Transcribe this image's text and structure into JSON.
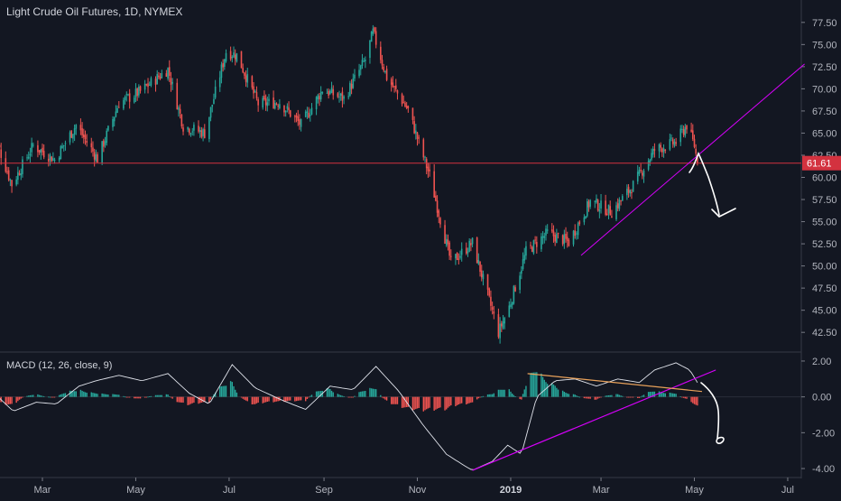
{
  "header": {
    "title": "Light Crude Oil Futures, 1D, NYMEX"
  },
  "indicator": {
    "title": "MACD (12, 26, close, 9)"
  },
  "colors": {
    "background": "#131722",
    "up": "#26a69a",
    "down": "#ef5350",
    "macd_line": "#e0e3eb",
    "trend": "#d500f9",
    "signal_line": "#e8a15a",
    "price_line": "#d3323f",
    "grid": "#2a2e39"
  },
  "chart_data": [
    {
      "type": "candlestick",
      "title": "Light Crude Oil Futures, 1D, NYMEX",
      "x_ticks": [
        "Mar",
        "May",
        "Jul",
        "Sep",
        "Nov",
        "2019",
        "Mar",
        "May",
        "Jul"
      ],
      "y_ticks": [
        "77.50",
        "75.00",
        "72.50",
        "70.00",
        "67.50",
        "65.00",
        "62.50",
        "60.00",
        "57.50",
        "55.00",
        "52.50",
        "50.00",
        "47.50",
        "45.00",
        "42.50"
      ],
      "ylim": [
        41.5,
        78.5
      ],
      "last_price": "61.61",
      "close_path": [
        {
          "date": "2018-01-26",
          "close": 66.1
        },
        {
          "date": "2018-02-09",
          "close": 59.2
        },
        {
          "date": "2018-02-23",
          "close": 63.6
        },
        {
          "date": "2018-03-09",
          "close": 62.0
        },
        {
          "date": "2018-03-23",
          "close": 65.9
        },
        {
          "date": "2018-04-06",
          "close": 62.1
        },
        {
          "date": "2018-04-20",
          "close": 68.4
        },
        {
          "date": "2018-05-04",
          "close": 69.7
        },
        {
          "date": "2018-05-22",
          "close": 72.2
        },
        {
          "date": "2018-06-01",
          "close": 65.8
        },
        {
          "date": "2018-06-15",
          "close": 65.0
        },
        {
          "date": "2018-06-29",
          "close": 74.2
        },
        {
          "date": "2018-07-06",
          "close": 73.8
        },
        {
          "date": "2018-07-20",
          "close": 68.3
        },
        {
          "date": "2018-08-03",
          "close": 68.5
        },
        {
          "date": "2018-08-17",
          "close": 65.9
        },
        {
          "date": "2018-08-31",
          "close": 69.9
        },
        {
          "date": "2018-09-14",
          "close": 68.9
        },
        {
          "date": "2018-09-28",
          "close": 73.3
        },
        {
          "date": "2018-10-03",
          "close": 76.4
        },
        {
          "date": "2018-10-12",
          "close": 71.3
        },
        {
          "date": "2018-10-26",
          "close": 67.6
        },
        {
          "date": "2018-11-09",
          "close": 60.2
        },
        {
          "date": "2018-11-23",
          "close": 50.4
        },
        {
          "date": "2018-12-07",
          "close": 52.6
        },
        {
          "date": "2018-12-24",
          "close": 42.5
        },
        {
          "date": "2018-12-31",
          "close": 45.4
        },
        {
          "date": "2019-01-11",
          "close": 51.6
        },
        {
          "date": "2019-01-25",
          "close": 53.7
        },
        {
          "date": "2019-02-08",
          "close": 52.7
        },
        {
          "date": "2019-02-22",
          "close": 57.3
        },
        {
          "date": "2019-03-08",
          "close": 56.1
        },
        {
          "date": "2019-03-22",
          "close": 59.1
        },
        {
          "date": "2019-04-05",
          "close": 63.1
        },
        {
          "date": "2019-04-19",
          "close": 64.0
        },
        {
          "date": "2019-04-26",
          "close": 65.9
        },
        {
          "date": "2019-05-01",
          "close": 63.6
        },
        {
          "date": "2019-05-03",
          "close": 61.6
        }
      ]
    },
    {
      "type": "line",
      "title": "MACD (12, 26, close, 9)",
      "y_ticks": [
        "2.00",
        "0.00",
        "-2.00",
        "-4.00"
      ],
      "ylim": [
        -4.3,
        2.3
      ],
      "macd": [
        {
          "date": "2018-01-26",
          "value": 0.4
        },
        {
          "date": "2018-02-10",
          "value": -0.8
        },
        {
          "date": "2018-02-25",
          "value": -0.3
        },
        {
          "date": "2018-03-10",
          "value": -0.4
        },
        {
          "date": "2018-03-25",
          "value": 0.6
        },
        {
          "date": "2018-04-05",
          "value": 0.9
        },
        {
          "date": "2018-04-20",
          "value": 1.2
        },
        {
          "date": "2018-05-05",
          "value": 0.9
        },
        {
          "date": "2018-05-22",
          "value": 1.3
        },
        {
          "date": "2018-06-05",
          "value": 0.2
        },
        {
          "date": "2018-06-18",
          "value": -0.4
        },
        {
          "date": "2018-07-03",
          "value": 1.8
        },
        {
          "date": "2018-07-18",
          "value": 0.5
        },
        {
          "date": "2018-08-05",
          "value": -0.2
        },
        {
          "date": "2018-08-20",
          "value": -0.7
        },
        {
          "date": "2018-09-05",
          "value": 0.6
        },
        {
          "date": "2018-09-20",
          "value": 0.4
        },
        {
          "date": "2018-10-05",
          "value": 1.7
        },
        {
          "date": "2018-10-20",
          "value": 0.3
        },
        {
          "date": "2018-11-05",
          "value": -1.6
        },
        {
          "date": "2018-11-20",
          "value": -3.2
        },
        {
          "date": "2018-12-01",
          "value": -3.8
        },
        {
          "date": "2018-12-07",
          "value": -4.1
        },
        {
          "date": "2018-12-20",
          "value": -3.6
        },
        {
          "date": "2018-12-30",
          "value": -2.7
        },
        {
          "date": "2019-01-08",
          "value": -3.2
        },
        {
          "date": "2019-01-18",
          "value": 0.0
        },
        {
          "date": "2019-01-30",
          "value": 0.9
        },
        {
          "date": "2019-02-12",
          "value": 1.0
        },
        {
          "date": "2019-02-26",
          "value": 0.6
        },
        {
          "date": "2019-03-12",
          "value": 1.0
        },
        {
          "date": "2019-03-26",
          "value": 0.8
        },
        {
          "date": "2019-04-05",
          "value": 1.5
        },
        {
          "date": "2019-04-19",
          "value": 1.9
        },
        {
          "date": "2019-04-28",
          "value": 1.5
        },
        {
          "date": "2019-05-03",
          "value": 0.8
        }
      ]
    }
  ],
  "drawings": {
    "price_trend": [
      {
        "date": "2019-02-16",
        "price": 51.2
      },
      {
        "date": "2019-07-12",
        "price": 72.8
      }
    ],
    "macd_trend": [
      {
        "date": "2018-12-07",
        "value": -4.1
      },
      {
        "date": "2019-05-15",
        "value": 1.5
      }
    ],
    "macd_top": [
      {
        "date": "2019-01-12",
        "value": 1.3
      },
      {
        "date": "2019-05-06",
        "value": 0.3
      }
    ]
  }
}
